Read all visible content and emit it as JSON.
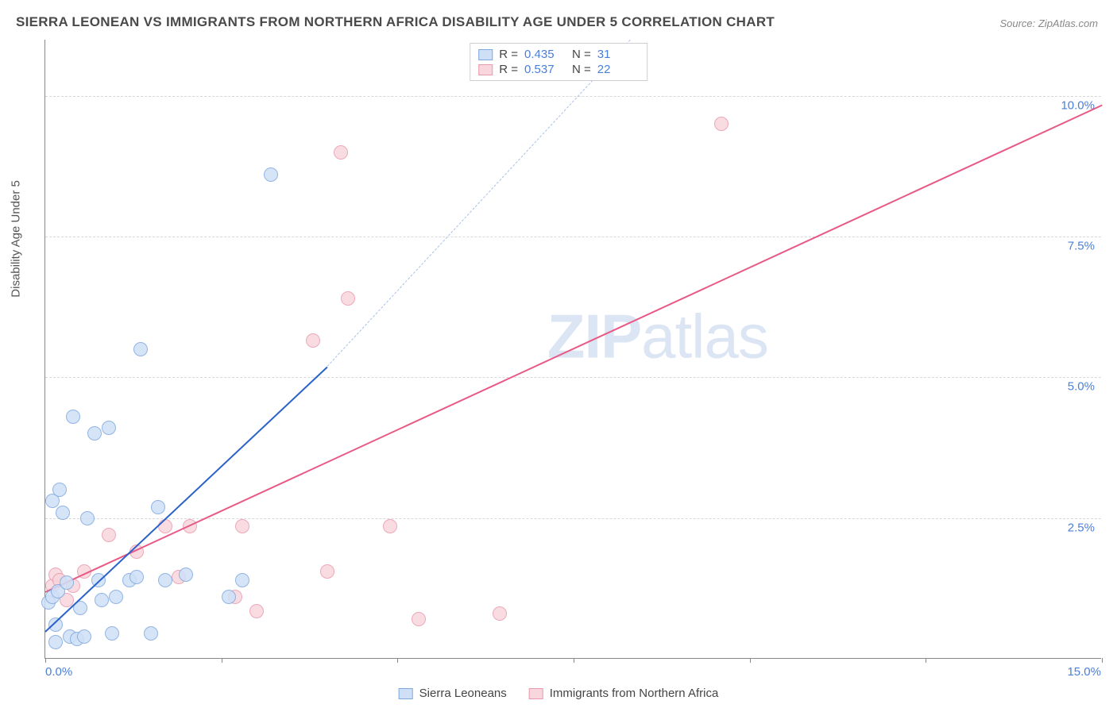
{
  "title": "SIERRA LEONEAN VS IMMIGRANTS FROM NORTHERN AFRICA DISABILITY AGE UNDER 5 CORRELATION CHART",
  "source": "Source: ZipAtlas.com",
  "y_axis_title": "Disability Age Under 5",
  "watermark_a": "ZIP",
  "watermark_b": "atlas",
  "chart": {
    "type": "scatter",
    "xlim": [
      0,
      15
    ],
    "ylim": [
      0,
      11
    ],
    "x_ticks": [
      0,
      2.5,
      5,
      7.5,
      10,
      12.5,
      15
    ],
    "x_tick_labels": {
      "0": "0.0%",
      "15": "15.0%"
    },
    "y_gridlines": [
      2.5,
      5.0,
      7.5,
      10.0
    ],
    "y_tick_labels": {
      "2.5": "2.5%",
      "5.0": "5.0%",
      "7.5": "7.5%",
      "10.0": "10.0%"
    },
    "background_color": "#ffffff",
    "grid_color": "#d8d8d8",
    "axis_color": "#888888"
  },
  "series": {
    "blue": {
      "label": "Sierra Leoneans",
      "r_label": "R =",
      "r_value": "0.435",
      "n_label": "N =",
      "n_value": "31",
      "marker_fill": "#cfe0f6",
      "marker_stroke": "#7fa8e0",
      "line_color": "#2b62c9",
      "dash_color": "#a9c1e8",
      "marker_radius": 9,
      "points": [
        [
          0.05,
          1.0
        ],
        [
          0.1,
          1.1
        ],
        [
          0.1,
          2.8
        ],
        [
          0.15,
          0.3
        ],
        [
          0.15,
          0.6
        ],
        [
          0.18,
          1.2
        ],
        [
          0.2,
          3.0
        ],
        [
          0.25,
          2.6
        ],
        [
          0.3,
          1.35
        ],
        [
          0.35,
          0.4
        ],
        [
          0.4,
          4.3
        ],
        [
          0.45,
          0.35
        ],
        [
          0.5,
          0.9
        ],
        [
          0.55,
          0.4
        ],
        [
          0.6,
          2.5
        ],
        [
          0.7,
          4.0
        ],
        [
          0.75,
          1.4
        ],
        [
          0.8,
          1.05
        ],
        [
          0.9,
          4.1
        ],
        [
          0.95,
          0.45
        ],
        [
          1.0,
          1.1
        ],
        [
          1.2,
          1.4
        ],
        [
          1.3,
          1.45
        ],
        [
          1.35,
          5.5
        ],
        [
          1.5,
          0.45
        ],
        [
          1.6,
          2.7
        ],
        [
          1.7,
          1.4
        ],
        [
          2.0,
          1.5
        ],
        [
          2.6,
          1.1
        ],
        [
          2.8,
          1.4
        ],
        [
          3.2,
          8.6
        ]
      ],
      "trend_solid": {
        "x1": 0.0,
        "y1": 0.5,
        "x2": 4.0,
        "y2": 5.2
      },
      "trend_dash": {
        "x1": 4.0,
        "y1": 5.2,
        "x2": 8.3,
        "y2": 11.0
      }
    },
    "pink": {
      "label": "Immigrants from Northern Africa",
      "r_label": "R =",
      "r_value": "0.537",
      "n_label": "N =",
      "n_value": "22",
      "marker_fill": "#f7d6de",
      "marker_stroke": "#e99ab0",
      "line_color": "#e85a85",
      "marker_radius": 9,
      "points": [
        [
          0.1,
          1.3
        ],
        [
          0.15,
          1.5
        ],
        [
          0.2,
          1.4
        ],
        [
          0.3,
          1.05
        ],
        [
          0.4,
          1.3
        ],
        [
          0.55,
          1.55
        ],
        [
          0.9,
          2.2
        ],
        [
          1.3,
          1.9
        ],
        [
          1.7,
          2.35
        ],
        [
          1.9,
          1.45
        ],
        [
          2.05,
          2.35
        ],
        [
          2.7,
          1.1
        ],
        [
          2.8,
          2.35
        ],
        [
          3.0,
          0.85
        ],
        [
          3.8,
          5.65
        ],
        [
          4.0,
          1.55
        ],
        [
          4.2,
          9.0
        ],
        [
          4.3,
          6.4
        ],
        [
          4.9,
          2.35
        ],
        [
          5.3,
          0.7
        ],
        [
          6.45,
          0.8
        ],
        [
          9.6,
          9.5
        ]
      ],
      "trend_solid": {
        "x1": 0.0,
        "y1": 1.2,
        "x2": 15.0,
        "y2": 9.85
      }
    }
  }
}
